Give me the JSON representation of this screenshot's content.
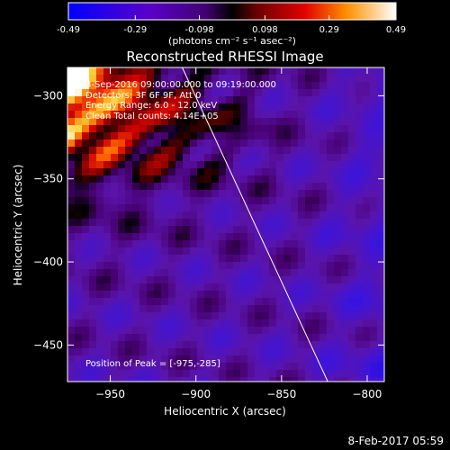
{
  "chart_data": {
    "type": "heatmap",
    "title": "Reconstructed RHESSI Image",
    "xlabel": "Heliocentric X (arcsec)",
    "ylabel": "Heliocentric Y (arcsec)",
    "xlim": [
      -975,
      -790
    ],
    "ylim": [
      -472,
      -283
    ],
    "xticks": [
      -950,
      -900,
      -850,
      -800
    ],
    "yticks": [
      -300,
      -350,
      -400,
      -450
    ],
    "colorbar": {
      "min": -0.49,
      "max": 0.49,
      "ticks": [
        -0.49,
        -0.29,
        -0.098,
        0.098,
        0.29,
        0.49
      ],
      "tick_labels": [
        "-0.49",
        "-0.29",
        "-0.098",
        "0.098",
        "0.29",
        "0.49"
      ],
      "label": "(photons cm⁻² s⁻¹ asec⁻²)"
    },
    "annotations": {
      "time": "3-Sep-2016 09:00:00.000 to 09:19:00.000",
      "detectors": "Detectors: 3F 6F 9F, Att 0",
      "energy": "Energy Range: 6.0 - 12.0 keV",
      "clean": "Clean     Total counts: 4.14E+05",
      "peak": "Position of Peak = [-975,-285]"
    },
    "limb_line": {
      "x": [
        -908,
        -823
      ],
      "y": [
        -283,
        -472
      ]
    },
    "peak_position": [
      -975,
      -285
    ]
  },
  "footer": {
    "timestamp": "8-Feb-2017 05:59"
  },
  "colors": {
    "background": "#000000",
    "text": "#ffffff"
  }
}
